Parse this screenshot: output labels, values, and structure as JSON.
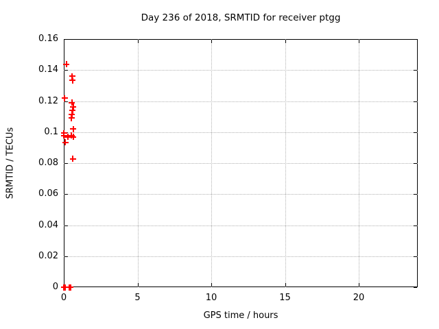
{
  "window": {
    "background": "#ffffff",
    "text_color": "#000000",
    "grid_color": "#b0b0b0",
    "marker_color": "#ff0000"
  },
  "chart_data": {
    "type": "scatter",
    "title": "Day 236 of 2018, SRMTID for receiver ptgg",
    "xlabel": "GPS time / hours",
    "ylabel": "SRMTID / TECUs",
    "xlim": [
      0,
      24
    ],
    "ylim": [
      0,
      0.16
    ],
    "xticks": {
      "values": [
        0,
        5,
        10,
        15,
        20
      ],
      "labels": [
        "0",
        "5",
        "10",
        "15",
        "20"
      ]
    },
    "yticks": {
      "values": [
        0,
        0.02,
        0.04,
        0.06,
        0.08,
        0.1,
        0.12,
        0.14,
        0.16
      ],
      "labels": [
        "0",
        "0.02",
        "0.04",
        "0.06",
        "0.08",
        "0.1",
        "0.12",
        "0.14",
        "0.16"
      ]
    },
    "grid": {
      "enabled": true,
      "style": "dotted",
      "color": "#b0b0b0"
    },
    "legend": {
      "visible": false
    },
    "series": [
      {
        "name": "SRMTID",
        "marker": "plus",
        "color": "#ff0000",
        "points": [
          [
            0.18,
            0.1437
          ],
          [
            0.58,
            0.136
          ],
          [
            0.6,
            0.1333
          ],
          [
            0.06,
            0.1219
          ],
          [
            0.55,
            0.119
          ],
          [
            0.63,
            0.1164
          ],
          [
            0.6,
            0.1139
          ],
          [
            0.55,
            0.1116
          ],
          [
            0.52,
            0.109
          ],
          [
            0.65,
            0.102
          ],
          [
            0.0,
            0.0994
          ],
          [
            0.0,
            0.0978
          ],
          [
            0.53,
            0.0979
          ],
          [
            0.63,
            0.0969
          ],
          [
            0.27,
            0.097
          ],
          [
            0.1,
            0.0934
          ],
          [
            0.61,
            0.0828
          ],
          [
            0.0,
            0.0
          ],
          [
            0.07,
            0.0
          ],
          [
            0.35,
            0.0
          ],
          [
            0.45,
            0.0
          ]
        ]
      }
    ]
  }
}
